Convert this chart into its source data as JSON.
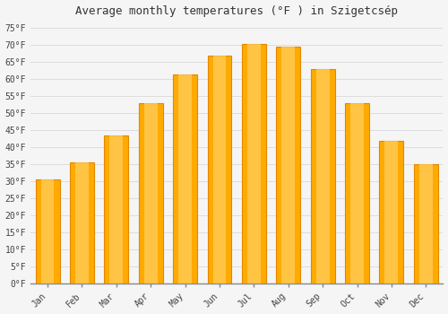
{
  "title": "Average monthly temperatures (°F ) in Szigetcsép",
  "months": [
    "Jan",
    "Feb",
    "Mar",
    "Apr",
    "May",
    "Jun",
    "Jul",
    "Aug",
    "Sep",
    "Oct",
    "Nov",
    "Dec"
  ],
  "values": [
    30.5,
    35.5,
    43.5,
    53.0,
    61.5,
    67.0,
    70.5,
    69.5,
    63.0,
    53.0,
    42.0,
    35.0
  ],
  "bar_color_main": "#FFAA00",
  "bar_color_edge": "#E08800",
  "bar_color_light": "#FFD060",
  "ylim": [
    0,
    77
  ],
  "yticks": [
    0,
    5,
    10,
    15,
    20,
    25,
    30,
    35,
    40,
    45,
    50,
    55,
    60,
    65,
    70,
    75
  ],
  "ytick_labels": [
    "0°F",
    "5°F",
    "10°F",
    "15°F",
    "20°F",
    "25°F",
    "30°F",
    "35°F",
    "40°F",
    "45°F",
    "50°F",
    "55°F",
    "60°F",
    "65°F",
    "70°F",
    "75°F"
  ],
  "title_fontsize": 9,
  "tick_fontsize": 7,
  "background_color": "#f5f5f5",
  "grid_color": "#dddddd"
}
